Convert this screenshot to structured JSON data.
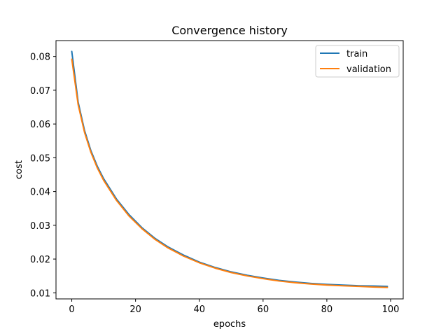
{
  "chart_data": {
    "type": "line",
    "title": "Convergence history",
    "xlabel": "epochs",
    "ylabel": "cost",
    "xlim": [
      -4.95,
      103.95
    ],
    "ylim": [
      0.0082,
      0.0847
    ],
    "xticks": [
      0,
      20,
      40,
      60,
      80,
      100
    ],
    "yticks": [
      0.01,
      0.02,
      0.03,
      0.04,
      0.05,
      0.06,
      0.07,
      0.08
    ],
    "xtick_labels": [
      "0",
      "20",
      "40",
      "60",
      "80",
      "100"
    ],
    "ytick_labels": [
      "0.01",
      "0.02",
      "0.03",
      "0.04",
      "0.05",
      "0.06",
      "0.07",
      "0.08"
    ],
    "grid": false,
    "legend_position": "top-right",
    "x": [
      0,
      2,
      4,
      6,
      8,
      10,
      14,
      18,
      22,
      26,
      30,
      35,
      40,
      45,
      50,
      55,
      60,
      65,
      70,
      75,
      80,
      85,
      90,
      95,
      99
    ],
    "series": [
      {
        "name": "train",
        "color": "#1f77b4",
        "values": [
          0.0815,
          0.0665,
          0.0581,
          0.0521,
          0.0475,
          0.0438,
          0.0378,
          0.0331,
          0.0293,
          0.0262,
          0.0237,
          0.0212,
          0.0191,
          0.0175,
          0.0162,
          0.0152,
          0.0144,
          0.0137,
          0.0132,
          0.0128,
          0.0125,
          0.0123,
          0.0121,
          0.012,
          0.0119
        ]
      },
      {
        "name": "validation",
        "color": "#ff7f0e",
        "values": [
          0.0792,
          0.0657,
          0.0575,
          0.0516,
          0.047,
          0.0433,
          0.0374,
          0.0327,
          0.029,
          0.0259,
          0.0234,
          0.0209,
          0.0189,
          0.0173,
          0.016,
          0.015,
          0.0142,
          0.0135,
          0.013,
          0.0126,
          0.0123,
          0.0121,
          0.0119,
          0.0117,
          0.0116
        ]
      }
    ]
  }
}
